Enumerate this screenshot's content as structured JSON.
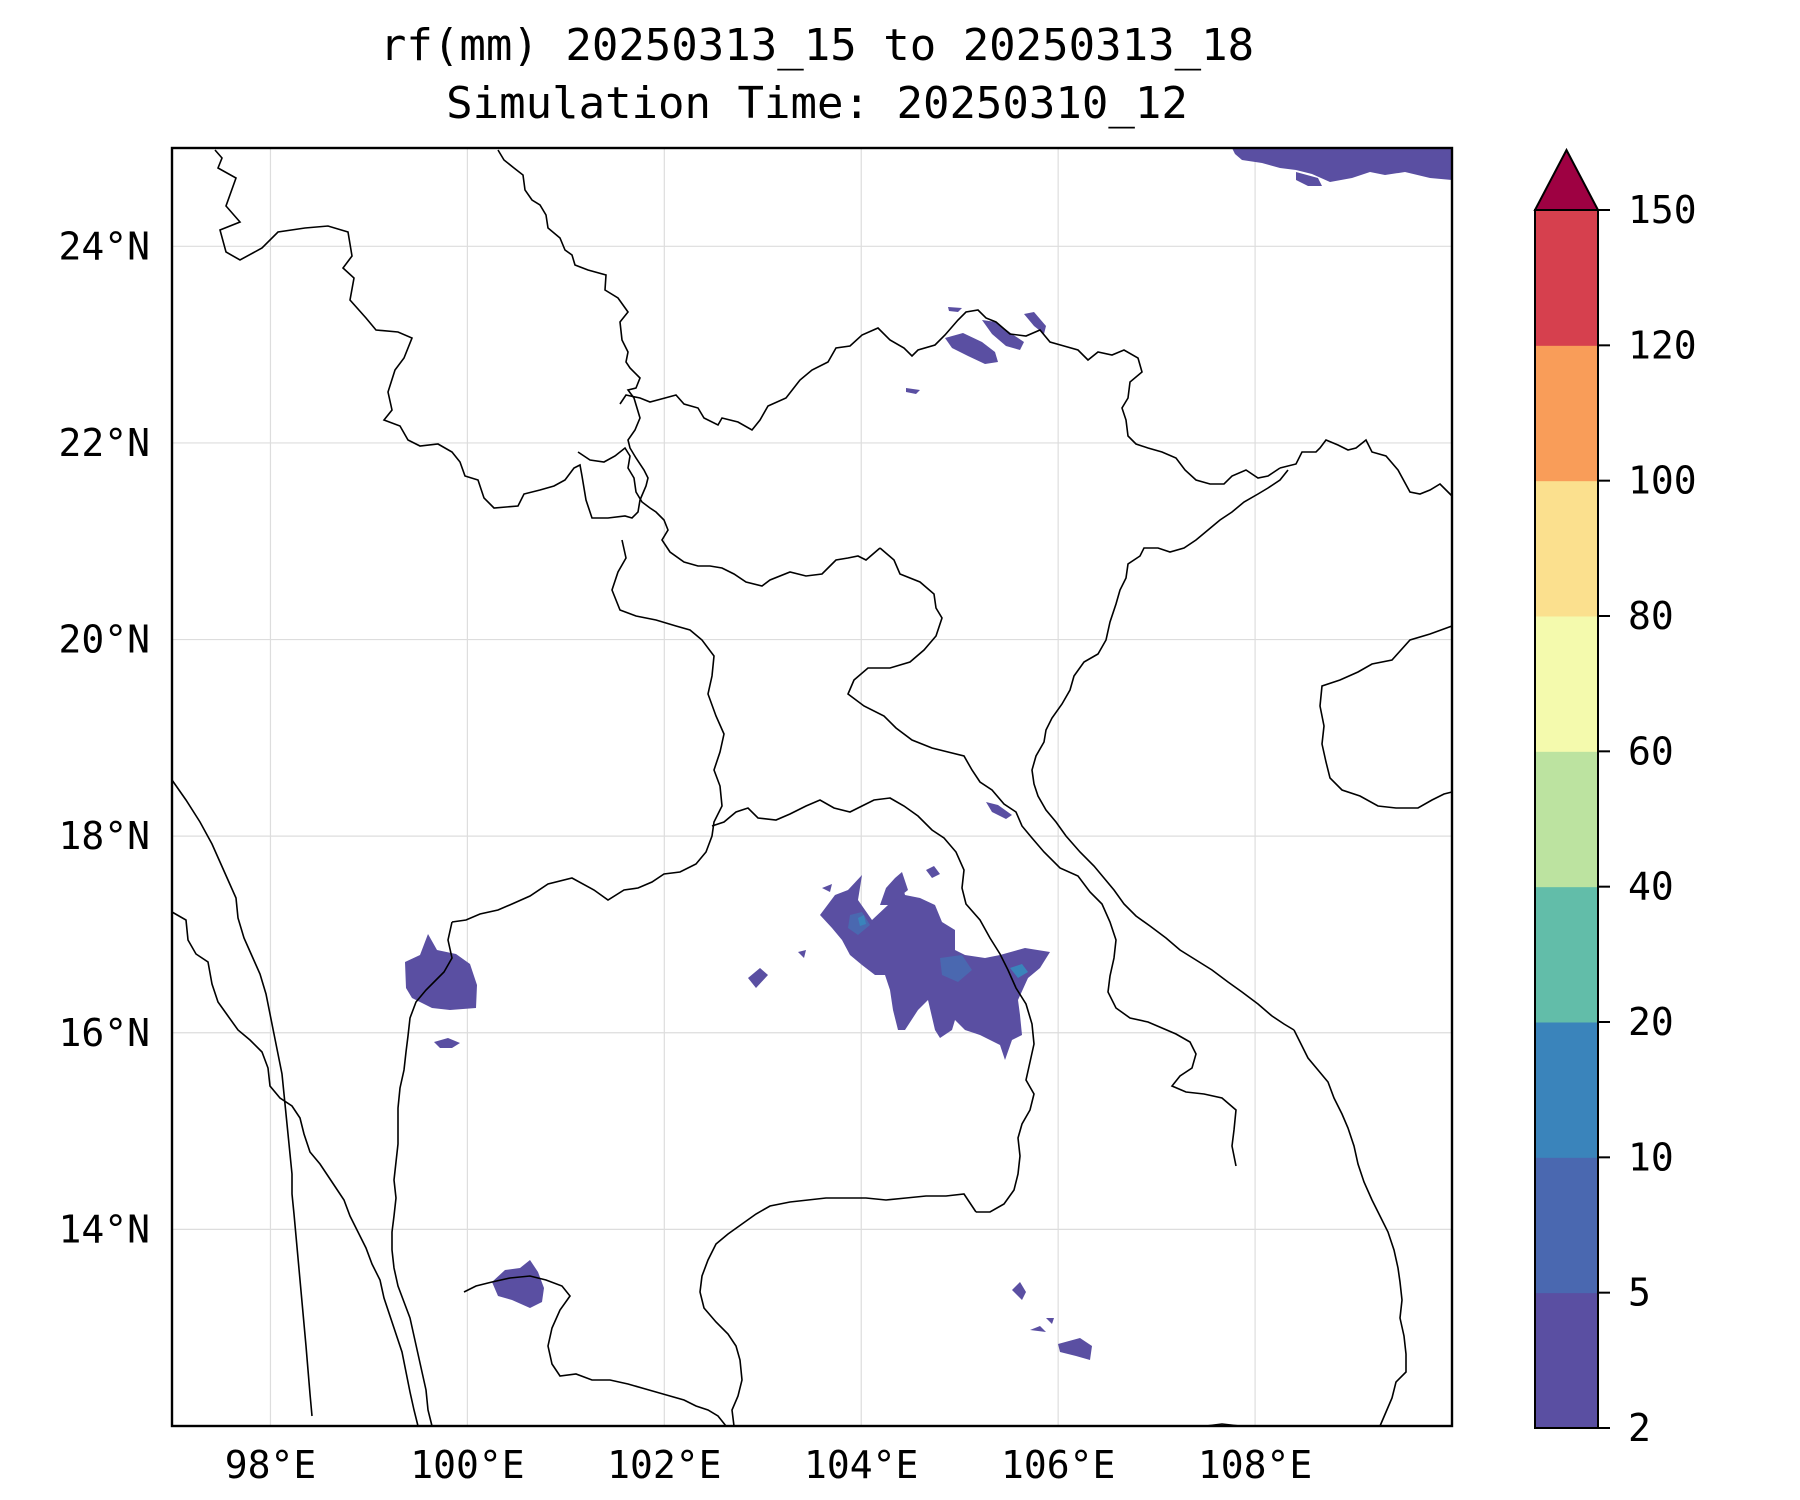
{
  "title": {
    "line1": "rf(mm) 20250313_15 to 20250313_18",
    "line2": "Simulation Time: 20250310_12"
  },
  "map": {
    "lon_range": [
      97.0,
      110.0
    ],
    "lat_range": [
      12.0,
      25.0
    ],
    "x_ticks": [
      {
        "value": 98,
        "label": "98°E"
      },
      {
        "value": 100,
        "label": "100°E"
      },
      {
        "value": 102,
        "label": "102°E"
      },
      {
        "value": 104,
        "label": "104°E"
      },
      {
        "value": 106,
        "label": "106°E"
      },
      {
        "value": 108,
        "label": "108°E"
      }
    ],
    "y_ticks": [
      {
        "value": 14,
        "label": "14°N"
      },
      {
        "value": 16,
        "label": "16°N"
      },
      {
        "value": 18,
        "label": "18°N"
      },
      {
        "value": 20,
        "label": "20°N"
      },
      {
        "value": 22,
        "label": "22°N"
      },
      {
        "value": 24,
        "label": "24°N"
      }
    ]
  },
  "colorbar": {
    "levels": [
      "2",
      "5",
      "10",
      "20",
      "40",
      "60",
      "80",
      "100",
      "120",
      "150"
    ],
    "colors": [
      "#5a4fa2",
      "#4a68b0",
      "#3a84bb",
      "#62bda9",
      "#bce3a0",
      "#f4faad",
      "#fbe08e",
      "#f99d59",
      "#d6404e",
      "#9e0142"
    ],
    "extend": "max"
  },
  "rain_colors": {
    "light": "#5a4fa2",
    "moderate": "#4a68b0",
    "heavy": "#3a84bb"
  }
}
